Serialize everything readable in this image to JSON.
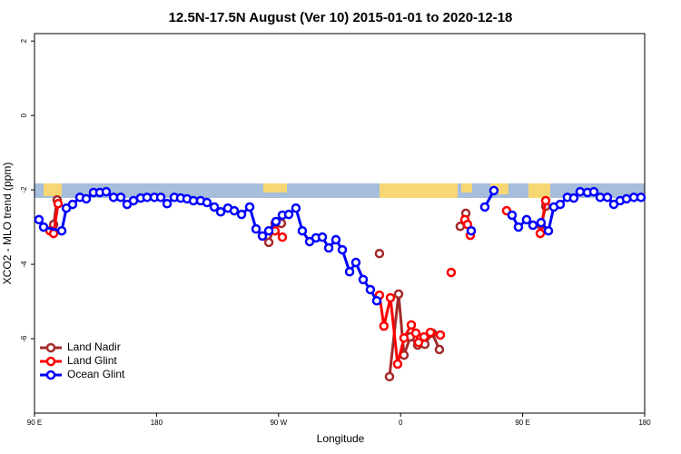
{
  "chart_data": {
    "type": "line",
    "title": "12.5N-17.5N August (Ver 10)   2015-01-01 to 2020-12-18",
    "x_label": "Longitude",
    "y_label": "XCO2 - MLO trend (ppm)",
    "xlim": [
      90,
      540
    ],
    "ylim": [
      -8,
      2.2
    ],
    "xticks": [
      {
        "value": 90,
        "label": "90 E"
      },
      {
        "value": 180,
        "label": "180"
      },
      {
        "value": 270,
        "label": "90 W"
      },
      {
        "value": 360,
        "label": "0"
      },
      {
        "value": 450,
        "label": "90 E"
      },
      {
        "value": 540,
        "label": "180"
      }
    ],
    "yticks": [
      2,
      0,
      -2,
      -4,
      -6
    ],
    "legend": "bottom-left",
    "series": [
      {
        "name": "Land Nadir",
        "color": "#a52a2a",
        "x": [
          104.1,
          106.7,
          null,
          262.8,
          267.4,
          272.1,
          null,
          344.4,
          null,
          351.8,
          358.5,
          362.5,
          367.2,
          372.6,
          377.9,
          383.3,
          388.6,
          null,
          404.0,
          408.1,
          null,
          463.6,
          467.0
        ],
        "values": [
          -2.93,
          -2.27,
          null,
          -3.41,
          -2.9,
          -2.9,
          null,
          -3.71,
          null,
          -7.02,
          -4.8,
          -6.44,
          -5.95,
          -6.17,
          -6.15,
          -5.85,
          -6.29,
          null,
          -2.98,
          -2.63,
          null,
          -2.95,
          -2.44
        ]
      },
      {
        "name": "Land Glint",
        "color": "#ff0000",
        "x": [
          101.4,
          104.1,
          107.4,
          null,
          267.4,
          272.8,
          null,
          344.4,
          347.7,
          352.5,
          357.8,
          362.5,
          367.9,
          371.2,
          373.2,
          377.3,
          382.0,
          389.3,
          null,
          397.3,
          null,
          407.4,
          409.4,
          411.4,
          null,
          438.2,
          null,
          463.0,
          467.0
        ],
        "values": [
          -3.1,
          -3.17,
          -2.37,
          null,
          -3.1,
          -3.27,
          null,
          -4.83,
          -5.66,
          -4.9,
          -6.68,
          -5.98,
          -5.63,
          -5.85,
          -6.1,
          -5.95,
          -5.83,
          -5.9,
          null,
          -4.22,
          null,
          -2.8,
          -2.93,
          -3.22,
          null,
          -2.56,
          null,
          -3.17,
          -2.29
        ]
      },
      {
        "name": "Ocean Glint",
        "color": "#0000ff",
        "x": [
          93.3,
          96.7,
          110.1,
          113.5,
          118.1,
          123.5,
          128.2,
          133.5,
          138.2,
          142.9,
          148.3,
          153.6,
          158.3,
          163.0,
          168.3,
          173.0,
          178.4,
          183.1,
          187.8,
          193.1,
          197.8,
          202.5,
          207.2,
          212.5,
          217.2,
          222.6,
          227.3,
          232.6,
          237.3,
          242.7,
          248.7,
          253.4,
          258.1,
          262.8,
          268.1,
          272.8,
          277.5,
          282.8,
          287.5,
          292.9,
          297.6,
          302.3,
          307.0,
          312.3,
          317.0,
          322.4,
          327.0,
          332.4,
          337.7,
          342.4,
          null,
          412.1,
          null,
          422.1,
          428.8,
          null,
          442.2,
          446.9,
          452.9,
          457.6,
          463.6,
          469.0,
          473.0,
          477.7,
          483.0,
          487.7,
          492.4,
          497.8,
          502.5,
          507.2,
          512.5,
          517.2,
          521.9,
          526.6,
          532.0,
          537.3
        ],
        "values": [
          -2.8,
          -3.0,
          -3.1,
          -2.49,
          -2.39,
          -2.2,
          -2.24,
          -2.07,
          -2.07,
          -2.05,
          -2.2,
          -2.2,
          -2.39,
          -2.29,
          -2.22,
          -2.2,
          -2.2,
          -2.2,
          -2.37,
          -2.2,
          -2.22,
          -2.24,
          -2.29,
          -2.29,
          -2.34,
          -2.46,
          -2.59,
          -2.49,
          -2.56,
          -2.66,
          -2.46,
          -3.05,
          -3.24,
          -3.1,
          -2.85,
          -2.68,
          -2.66,
          -2.49,
          -3.1,
          -3.39,
          -3.29,
          -3.27,
          -3.56,
          -3.34,
          -3.61,
          -4.2,
          -3.95,
          -4.41,
          -4.68,
          -4.98,
          null,
          -3.1,
          null,
          -2.46,
          -2.02,
          null,
          -2.68,
          -3.0,
          -2.8,
          -2.95,
          -2.88,
          -3.1,
          -2.46,
          -2.39,
          -2.2,
          -2.22,
          -2.05,
          -2.07,
          -2.05,
          -2.2,
          -2.2,
          -2.39,
          -2.29,
          -2.24,
          -2.2,
          -2.2
        ]
      }
    ]
  }
}
